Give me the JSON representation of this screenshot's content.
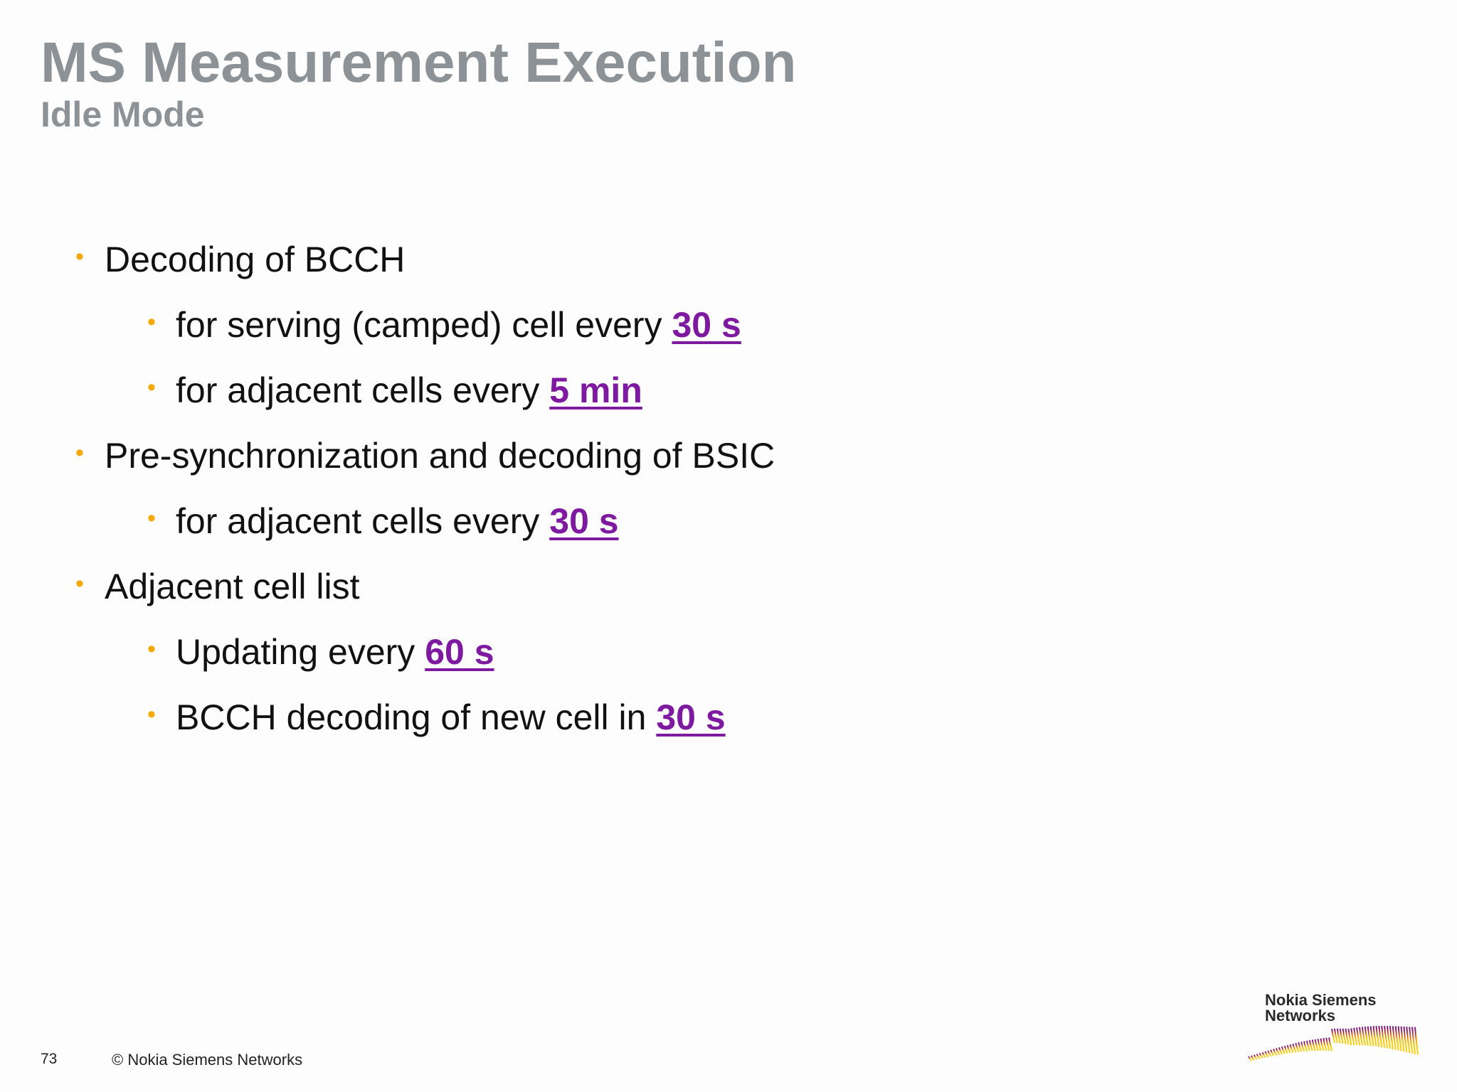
{
  "slide": {
    "title": "MS Measurement Execution",
    "subtitle": "Idle Mode"
  },
  "bullets": [
    {
      "level": 1,
      "text": "Decoding of BCCH",
      "emphasis": ""
    },
    {
      "level": 2,
      "text": "for serving (camped) cell every ",
      "emphasis": "30 s"
    },
    {
      "level": 2,
      "text": "for adjacent cells every ",
      "emphasis": "5 min"
    },
    {
      "level": 1,
      "text": "Pre-synchronization and decoding of BSIC",
      "emphasis": ""
    },
    {
      "level": 2,
      "text": "for adjacent cells every ",
      "emphasis": "30 s"
    },
    {
      "level": 1,
      "text": "Adjacent cell list",
      "emphasis": ""
    },
    {
      "level": 2,
      "text": "Updating every ",
      "emphasis": "60 s"
    },
    {
      "level": 2,
      "text": "BCCH decoding of new cell in ",
      "emphasis": "30 s"
    }
  ],
  "bullet_symbol": "•",
  "footer": {
    "page_number": "73",
    "copyright": "© Nokia Siemens Networks"
  },
  "logo": {
    "line1": "Nokia Siemens",
    "line2": "Networks"
  },
  "colors": {
    "title": "#8d9296",
    "bullet": "#f5a800",
    "emphasis": "#7d1a9f",
    "logo_purple": "#6a1b9a",
    "logo_yellow": "#f2c400"
  }
}
